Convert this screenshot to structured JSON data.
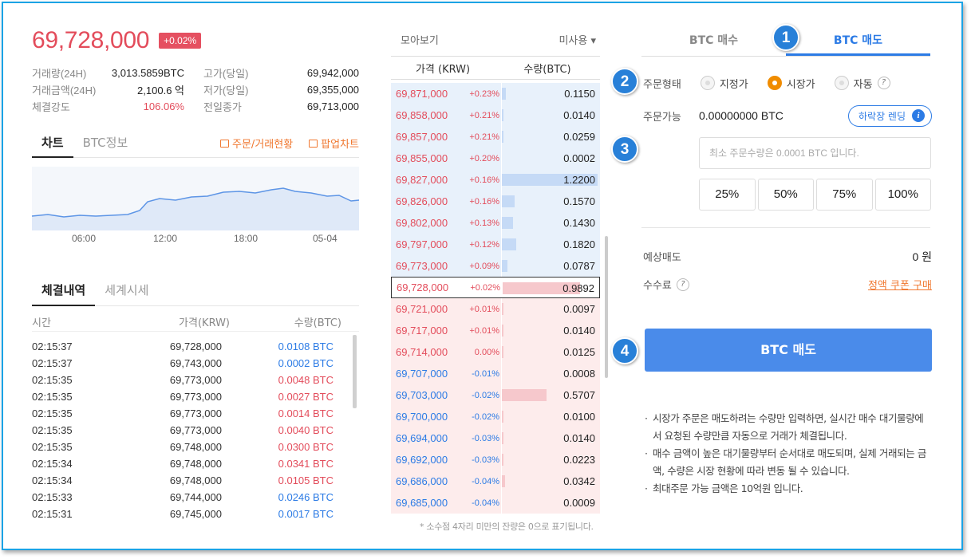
{
  "ticker": {
    "price": "69,728,000",
    "change": "+0.02%"
  },
  "stats": [
    {
      "l1": "거래량(24H)",
      "v1": "3,013.5859BTC",
      "l2": "고가(당일)",
      "v2": "69,942,000",
      "red": false
    },
    {
      "l1": "거래금액(24H)",
      "v1": "2,100.6 억",
      "l2": "저가(당일)",
      "v2": "69,355,000",
      "red": false
    },
    {
      "l1": "체결강도",
      "v1": "106.06%",
      "l2": "전일종가",
      "v2": "69,713,000",
      "red": true
    }
  ],
  "chart_tabs": {
    "chart": "차트",
    "info": "BTC정보",
    "order_status": "주문/거래현황",
    "popup": "팝업차트"
  },
  "chart_data": {
    "type": "area",
    "x": [
      "06:00",
      "12:00",
      "18:00",
      "05-04"
    ],
    "xticks": [
      "06:00",
      "12:00",
      "18:00",
      "05-04"
    ]
  },
  "trade_tabs": {
    "history": "체결내역",
    "world": "세계시세"
  },
  "trade_head": {
    "time": "시간",
    "price": "가격(KRW)",
    "qty": "수량(BTC)"
  },
  "trades": [
    {
      "t": "02:15:37",
      "p": "69,728,000",
      "q": "0.0108 BTC",
      "side": "blue"
    },
    {
      "t": "02:15:37",
      "p": "69,743,000",
      "q": "0.0002 BTC",
      "side": "blue"
    },
    {
      "t": "02:15:35",
      "p": "69,773,000",
      "q": "0.0048 BTC",
      "side": "red"
    },
    {
      "t": "02:15:35",
      "p": "69,773,000",
      "q": "0.0027 BTC",
      "side": "red"
    },
    {
      "t": "02:15:35",
      "p": "69,773,000",
      "q": "0.0014 BTC",
      "side": "red"
    },
    {
      "t": "02:15:35",
      "p": "69,773,000",
      "q": "0.0040 BTC",
      "side": "red"
    },
    {
      "t": "02:15:35",
      "p": "69,748,000",
      "q": "0.0300 BTC",
      "side": "red"
    },
    {
      "t": "02:15:34",
      "p": "69,748,000",
      "q": "0.0341 BTC",
      "side": "red"
    },
    {
      "t": "02:15:34",
      "p": "69,748,000",
      "q": "0.0105 BTC",
      "side": "red"
    },
    {
      "t": "02:15:33",
      "p": "69,744,000",
      "q": "0.0246 BTC",
      "side": "blue"
    },
    {
      "t": "02:15:31",
      "p": "69,745,000",
      "q": "0.0017 BTC",
      "side": "blue"
    }
  ],
  "orderbook": {
    "view": "모아보기",
    "unused": "미사용 ▾",
    "h_price": "가격 (KRW)",
    "h_qty": "수량(BTC)",
    "rows": [
      {
        "p": "69,871,000",
        "c": "+0.23%",
        "q": "0.1150",
        "type": "ask",
        "color": "red",
        "bar": 0.04
      },
      {
        "p": "69,858,000",
        "c": "+0.21%",
        "q": "0.0140",
        "type": "ask",
        "color": "red",
        "bar": 0.01
      },
      {
        "p": "69,857,000",
        "c": "+0.21%",
        "q": "0.0259",
        "type": "ask",
        "color": "red",
        "bar": 0.01
      },
      {
        "p": "69,855,000",
        "c": "+0.20%",
        "q": "0.0002",
        "type": "ask",
        "color": "red",
        "bar": 0
      },
      {
        "p": "69,827,000",
        "c": "+0.16%",
        "q": "1.2200",
        "type": "ask",
        "color": "red",
        "bar": 1.0
      },
      {
        "p": "69,826,000",
        "c": "+0.16%",
        "q": "0.1570",
        "type": "ask",
        "color": "red",
        "bar": 0.13
      },
      {
        "p": "69,802,000",
        "c": "+0.13%",
        "q": "0.1430",
        "type": "ask",
        "color": "red",
        "bar": 0.12
      },
      {
        "p": "69,797,000",
        "c": "+0.12%",
        "q": "0.1820",
        "type": "ask",
        "color": "red",
        "bar": 0.15
      },
      {
        "p": "69,773,000",
        "c": "+0.09%",
        "q": "0.0787",
        "type": "ask",
        "color": "red",
        "bar": 0.06
      },
      {
        "p": "69,728,000",
        "c": "+0.02%",
        "q": "0.9892",
        "type": "cur",
        "color": "red",
        "bar": 0.81
      },
      {
        "p": "69,721,000",
        "c": "+0.01%",
        "q": "0.0097",
        "type": "bid",
        "color": "red",
        "bar": 0.01
      },
      {
        "p": "69,717,000",
        "c": "+0.01%",
        "q": "0.0140",
        "type": "bid",
        "color": "red",
        "bar": 0.01
      },
      {
        "p": "69,714,000",
        "c": "0.00%",
        "q": "0.0125",
        "type": "bid",
        "color": "red",
        "bar": 0.01
      },
      {
        "p": "69,707,000",
        "c": "-0.01%",
        "q": "0.0008",
        "type": "bid",
        "color": "blue",
        "bar": 0
      },
      {
        "p": "69,703,000",
        "c": "-0.02%",
        "q": "0.5707",
        "type": "bid",
        "color": "blue",
        "bar": 0.47
      },
      {
        "p": "69,700,000",
        "c": "-0.02%",
        "q": "0.0100",
        "type": "bid",
        "color": "blue",
        "bar": 0.01
      },
      {
        "p": "69,694,000",
        "c": "-0.03%",
        "q": "0.0140",
        "type": "bid",
        "color": "blue",
        "bar": 0.01
      },
      {
        "p": "69,692,000",
        "c": "-0.03%",
        "q": "0.0223",
        "type": "bid",
        "color": "blue",
        "bar": 0.02
      },
      {
        "p": "69,686,000",
        "c": "-0.04%",
        "q": "0.0342",
        "type": "bid",
        "color": "blue",
        "bar": 0.03
      },
      {
        "p": "69,685,000",
        "c": "-0.04%",
        "q": "0.0009",
        "type": "bid",
        "color": "blue",
        "bar": 0
      }
    ],
    "note": "* 소수점 4자리 미만의 잔량은 0으로 표기됩니다."
  },
  "order": {
    "tab_buy": "BTC 매수",
    "tab_sell": "BTC 매도",
    "type_label": "주문형태",
    "opt_limit": "지정가",
    "opt_market": "시장가",
    "opt_auto": "자동",
    "avail_label": "주문가능",
    "avail_value": "0.00000000 BTC",
    "lend_btn": "하락장 렌딩",
    "qty_placeholder": "최소 주문수량은 0.0001 BTC 입니다.",
    "pct": [
      "25%",
      "50%",
      "75%",
      "100%"
    ],
    "est_label": "예상매도",
    "est_value": "0 원",
    "fee_label": "수수료",
    "coupon": "정액 쿠폰 구매",
    "submit": "BTC 매도",
    "notes": [
      "시장가 주문은 매도하려는 수량만 입력하면, 실시간 매수 대기물량에서 요청된 수량만큼 자동으로 거래가 체결됩니다.",
      "매수 금액이 높은 대기물량부터 순서대로 매도되며, 실제 거래되는 금액, 수량은 시장 현황에 따라 변동 될 수 있습니다.",
      "최대주문 가능 금액은 10억원 입니다."
    ],
    "steps": [
      "1",
      "2",
      "3",
      "4"
    ]
  }
}
